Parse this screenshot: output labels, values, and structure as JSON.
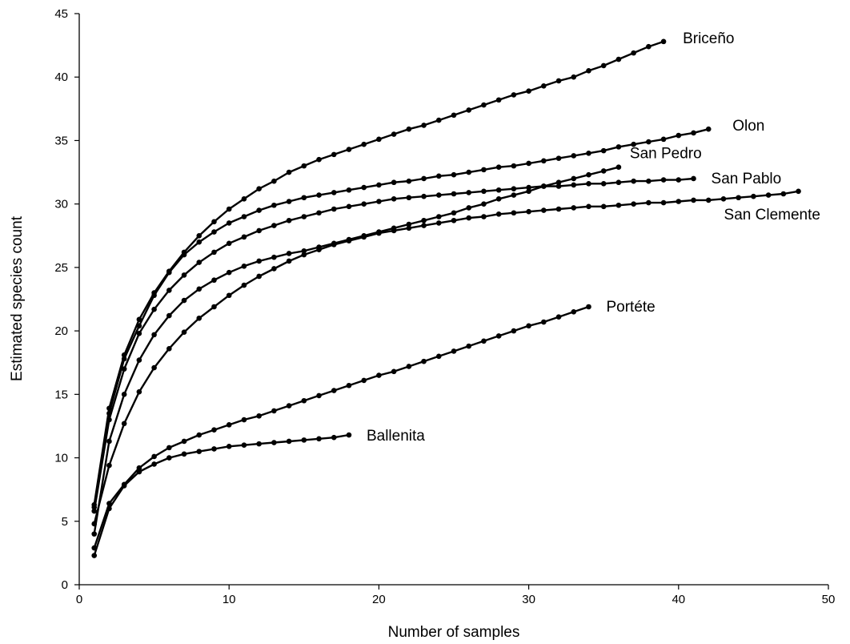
{
  "chart_data": {
    "type": "line",
    "xlabel": "Number of samples",
    "ylabel": "Estimated species count",
    "xlim": [
      0,
      50
    ],
    "ylim": [
      0,
      45
    ],
    "xticks": [
      0,
      10,
      20,
      30,
      40,
      50
    ],
    "yticks": [
      0,
      5,
      10,
      15,
      20,
      25,
      30,
      35,
      40,
      45
    ],
    "grid": false,
    "legend": "none",
    "series": [
      {
        "name": "Briceño",
        "x": [
          1,
          2,
          3,
          4,
          5,
          6,
          7,
          8,
          9,
          10,
          11,
          12,
          13,
          14,
          15,
          16,
          17,
          18,
          19,
          20,
          21,
          22,
          23,
          24,
          25,
          26,
          27,
          28,
          29,
          30,
          31,
          32,
          33,
          34,
          35,
          36,
          37,
          38,
          39
        ],
        "y": [
          6.3,
          13.9,
          18.1,
          20.9,
          23.0,
          24.7,
          26.2,
          27.5,
          28.6,
          29.6,
          30.4,
          31.2,
          31.8,
          32.5,
          33.0,
          33.5,
          33.9,
          34.3,
          34.7,
          35.1,
          35.5,
          35.9,
          36.2,
          36.6,
          37.0,
          37.4,
          37.8,
          38.2,
          38.6,
          38.9,
          39.3,
          39.7,
          40.0,
          40.5,
          40.9,
          41.4,
          41.9,
          42.4,
          42.8
        ]
      },
      {
        "name": "Olon",
        "x": [
          1,
          2,
          3,
          4,
          5,
          6,
          7,
          8,
          9,
          10,
          11,
          12,
          13,
          14,
          15,
          16,
          17,
          18,
          19,
          20,
          21,
          22,
          23,
          24,
          25,
          26,
          27,
          28,
          29,
          30,
          31,
          32,
          33,
          34,
          35,
          36,
          37,
          38,
          39,
          40,
          41,
          42
        ],
        "y": [
          6.1,
          13.5,
          17.8,
          20.4,
          22.8,
          24.6,
          26.0,
          27.0,
          27.8,
          28.5,
          29.0,
          29.5,
          29.9,
          30.2,
          30.5,
          30.7,
          30.9,
          31.1,
          31.3,
          31.5,
          31.7,
          31.8,
          32.0,
          32.2,
          32.3,
          32.5,
          32.7,
          32.9,
          33.0,
          33.2,
          33.4,
          33.6,
          33.8,
          34.0,
          34.2,
          34.5,
          34.7,
          34.9,
          35.1,
          35.4,
          35.6,
          35.9
        ]
      },
      {
        "name": "San Pedro",
        "x": [
          1,
          2,
          3,
          4,
          5,
          6,
          7,
          8,
          9,
          10,
          11,
          12,
          13,
          14,
          15,
          16,
          17,
          18,
          19,
          20,
          21,
          22,
          23,
          24,
          25,
          26,
          27,
          28,
          29,
          30,
          31,
          32,
          33,
          34,
          35,
          36
        ],
        "y": [
          4.0,
          11.3,
          15.0,
          17.7,
          19.7,
          21.2,
          22.4,
          23.3,
          24.0,
          24.6,
          25.1,
          25.5,
          25.8,
          26.1,
          26.3,
          26.6,
          26.9,
          27.2,
          27.5,
          27.8,
          28.1,
          28.4,
          28.7,
          29.0,
          29.3,
          29.7,
          30.0,
          30.4,
          30.7,
          31.0,
          31.4,
          31.7,
          32.0,
          32.3,
          32.6,
          32.9
        ]
      },
      {
        "name": "San Pablo",
        "x": [
          1,
          2,
          3,
          4,
          5,
          6,
          7,
          8,
          9,
          10,
          11,
          12,
          13,
          14,
          15,
          16,
          17,
          18,
          19,
          20,
          21,
          22,
          23,
          24,
          25,
          26,
          27,
          28,
          29,
          30,
          31,
          32,
          33,
          34,
          35,
          36,
          37,
          38,
          39,
          40,
          41
        ],
        "y": [
          5.8,
          13.0,
          17.0,
          19.8,
          21.7,
          23.2,
          24.4,
          25.4,
          26.2,
          26.9,
          27.4,
          27.9,
          28.3,
          28.7,
          29.0,
          29.3,
          29.6,
          29.8,
          30.0,
          30.2,
          30.4,
          30.5,
          30.6,
          30.7,
          30.8,
          30.9,
          31.0,
          31.1,
          31.2,
          31.3,
          31.4,
          31.4,
          31.5,
          31.6,
          31.6,
          31.7,
          31.8,
          31.8,
          31.9,
          31.9,
          32.0
        ]
      },
      {
        "name": "San Clemente",
        "x": [
          1,
          2,
          3,
          4,
          5,
          6,
          7,
          8,
          9,
          10,
          11,
          12,
          13,
          14,
          15,
          16,
          17,
          18,
          19,
          20,
          21,
          22,
          23,
          24,
          25,
          26,
          27,
          28,
          29,
          30,
          31,
          32,
          33,
          34,
          35,
          36,
          37,
          38,
          39,
          40,
          41,
          42,
          43,
          44,
          45,
          46,
          47,
          48
        ],
        "y": [
          4.8,
          9.4,
          12.7,
          15.2,
          17.1,
          18.6,
          19.9,
          21.0,
          21.9,
          22.8,
          23.6,
          24.3,
          24.9,
          25.5,
          26.0,
          26.4,
          26.8,
          27.1,
          27.4,
          27.7,
          27.9,
          28.1,
          28.3,
          28.5,
          28.7,
          28.9,
          29.0,
          29.2,
          29.3,
          29.4,
          29.5,
          29.6,
          29.7,
          29.8,
          29.8,
          29.9,
          30.0,
          30.1,
          30.1,
          30.2,
          30.3,
          30.3,
          30.4,
          30.5,
          30.6,
          30.7,
          30.8,
          31.0
        ]
      },
      {
        "name": "Portéte",
        "x": [
          1,
          2,
          3,
          4,
          5,
          6,
          7,
          8,
          9,
          10,
          11,
          12,
          13,
          14,
          15,
          16,
          17,
          18,
          19,
          20,
          21,
          22,
          23,
          24,
          25,
          26,
          27,
          28,
          29,
          30,
          31,
          32,
          33,
          34
        ],
        "y": [
          2.9,
          6.4,
          7.9,
          9.2,
          10.1,
          10.8,
          11.3,
          11.8,
          12.2,
          12.6,
          13.0,
          13.3,
          13.7,
          14.1,
          14.5,
          14.9,
          15.3,
          15.7,
          16.1,
          16.5,
          16.8,
          17.2,
          17.6,
          18.0,
          18.4,
          18.8,
          19.2,
          19.6,
          20.0,
          20.4,
          20.7,
          21.1,
          21.5,
          21.9
        ]
      },
      {
        "name": "Ballenita",
        "x": [
          1,
          2,
          3,
          4,
          5,
          6,
          7,
          8,
          9,
          10,
          11,
          12,
          13,
          14,
          15,
          16,
          17,
          18
        ],
        "y": [
          2.3,
          6.0,
          7.8,
          8.9,
          9.5,
          10.0,
          10.3,
          10.5,
          10.7,
          10.9,
          11.0,
          11.1,
          11.2,
          11.3,
          11.4,
          11.5,
          11.6,
          11.8
        ]
      }
    ]
  }
}
